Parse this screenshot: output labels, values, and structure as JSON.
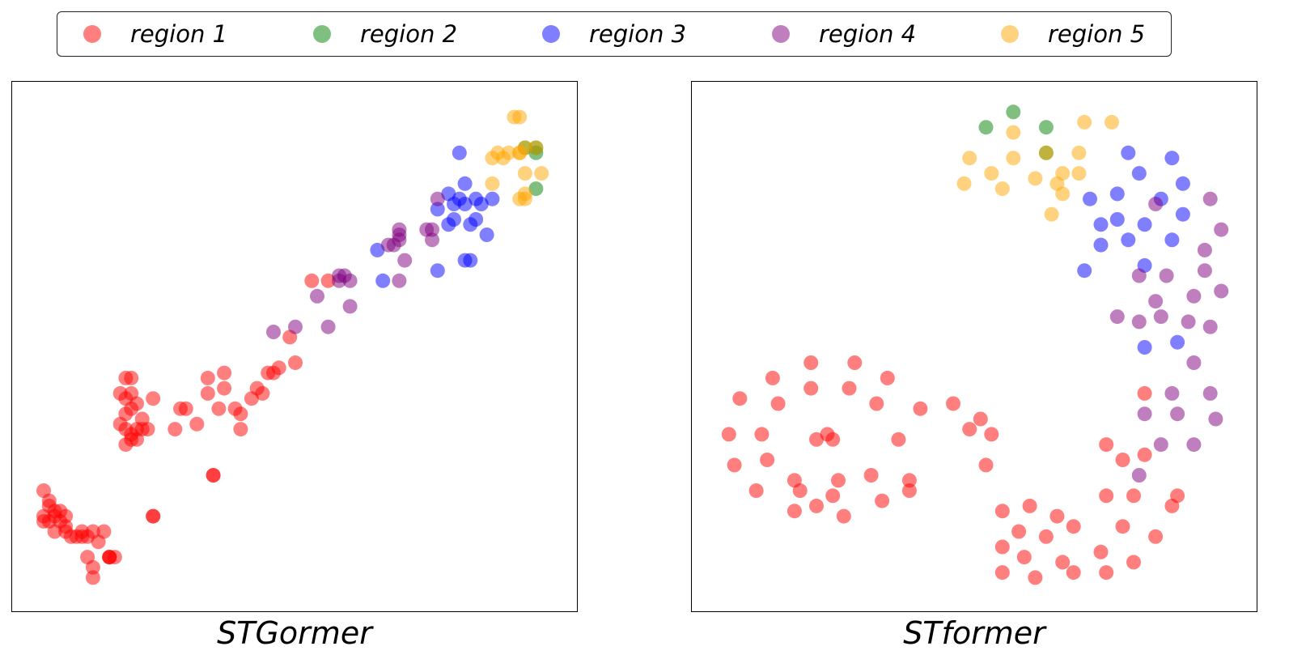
{
  "legend": {
    "items": [
      {
        "label": "region 1",
        "color": "#ff0000"
      },
      {
        "label": "region 2",
        "color": "#008000"
      },
      {
        "label": "region 3",
        "color": "#0000ff"
      },
      {
        "label": "region 4",
        "color": "#800080"
      },
      {
        "label": "region 5",
        "color": "#ffa500"
      }
    ]
  },
  "chart_data": [
    {
      "type": "scatter",
      "title": "STGormer",
      "xlim": [
        0,
        100
      ],
      "ylim": [
        0,
        100
      ],
      "series": [
        {
          "name": "region 1",
          "color": "#ff0000",
          "points": [
            [
              4,
              22
            ],
            [
              5,
              20
            ],
            [
              5,
              19
            ],
            [
              6,
              18
            ],
            [
              4,
              17
            ],
            [
              6,
              17
            ],
            [
              7,
              18
            ],
            [
              7,
              16
            ],
            [
              8,
              17
            ],
            [
              5,
              16
            ],
            [
              8,
              15
            ],
            [
              4,
              16
            ],
            [
              6,
              14
            ],
            [
              8,
              14
            ],
            [
              9,
              13
            ],
            [
              10,
              13
            ],
            [
              11,
              13
            ],
            [
              11,
              14
            ],
            [
              12,
              13
            ],
            [
              13,
              14
            ],
            [
              15,
              14
            ],
            [
              14,
              12
            ],
            [
              12,
              9
            ],
            [
              13,
              7
            ],
            [
              16,
              9
            ],
            [
              17,
              9
            ],
            [
              13,
              5
            ],
            [
              19,
              44
            ],
            [
              20,
              44
            ],
            [
              20,
              41
            ],
            [
              18,
              41
            ],
            [
              19,
              40
            ],
            [
              21,
              39
            ],
            [
              19,
              37
            ],
            [
              20,
              38
            ],
            [
              18,
              35
            ],
            [
              19,
              34
            ],
            [
              22,
              36
            ],
            [
              21,
              34
            ],
            [
              19,
              31
            ],
            [
              20,
              33
            ],
            [
              22,
              34
            ],
            [
              23,
              34
            ],
            [
              20,
              32
            ],
            [
              21,
              32
            ],
            [
              24,
              40
            ],
            [
              28,
              34
            ],
            [
              29,
              38
            ],
            [
              30,
              38
            ],
            [
              32,
              35
            ],
            [
              34,
              41
            ],
            [
              34,
              44
            ],
            [
              37,
              45
            ],
            [
              36,
              38
            ],
            [
              37,
              42
            ],
            [
              39,
              38
            ],
            [
              40,
              37
            ],
            [
              40,
              34
            ],
            [
              42,
              40
            ],
            [
              43,
              42
            ],
            [
              44,
              41
            ],
            [
              46,
              45
            ],
            [
              45,
              45
            ],
            [
              47,
              46
            ],
            [
              49,
              52
            ],
            [
              50,
              47
            ],
            [
              53,
              63
            ],
            [
              56,
              63
            ],
            [
              35,
              25
            ],
            [
              35,
              25
            ],
            [
              24,
              17
            ],
            [
              24,
              17
            ],
            [
              16,
              9
            ],
            [
              16,
              9
            ]
          ]
        },
        {
          "name": "region 2",
          "color": "#008000",
          "points": [
            [
              92,
              89
            ],
            [
              94,
              89
            ],
            [
              94,
              88
            ],
            [
              94,
              81
            ]
          ]
        },
        {
          "name": "region 3",
          "color": "#0000ff",
          "points": [
            [
              80,
              88
            ],
            [
              81,
              82
            ],
            [
              78,
              80
            ],
            [
              81,
              78
            ],
            [
              79,
              78
            ],
            [
              80,
              79
            ],
            [
              83,
              79
            ],
            [
              76,
              77
            ],
            [
              79,
              75
            ],
            [
              84,
              78
            ],
            [
              86,
              79
            ],
            [
              83,
              75
            ],
            [
              82,
              74
            ],
            [
              85,
              72
            ],
            [
              78,
              74
            ],
            [
              65,
              69
            ],
            [
              76,
              65
            ],
            [
              66,
              63
            ],
            [
              81,
              67
            ],
            [
              82,
              67
            ]
          ]
        },
        {
          "name": "region 4",
          "color": "#800080",
          "points": [
            [
              76,
              79
            ],
            [
              69,
              73
            ],
            [
              69,
              71
            ],
            [
              74,
              73
            ],
            [
              75,
              73
            ],
            [
              75,
              71
            ],
            [
              67,
              70
            ],
            [
              68,
              70
            ],
            [
              69,
              72
            ],
            [
              70,
              67
            ],
            [
              60,
              63
            ],
            [
              59,
              64
            ],
            [
              58,
              64
            ],
            [
              58,
              63
            ],
            [
              54,
              60
            ],
            [
              60,
              58
            ],
            [
              69,
              63
            ],
            [
              46,
              53
            ],
            [
              56,
              54
            ],
            [
              50,
              54
            ]
          ]
        },
        {
          "name": "region 5",
          "color": "#ffa500",
          "points": [
            [
              90,
              95
            ],
            [
              91,
              95
            ],
            [
              88,
              87
            ],
            [
              87,
              88
            ],
            [
              86,
              87
            ],
            [
              89,
              88
            ],
            [
              91,
              88
            ],
            [
              92,
              89
            ],
            [
              92,
              84
            ],
            [
              95,
              84
            ],
            [
              86,
              82
            ],
            [
              92,
              80
            ],
            [
              91,
              79
            ],
            [
              92,
              79
            ],
            [
              91,
              88
            ],
            [
              94,
              89
            ]
          ]
        }
      ]
    },
    {
      "type": "scatter",
      "title": "STformer",
      "xlim": [
        0,
        100
      ],
      "ylim": [
        0,
        100
      ],
      "series": [
        {
          "name": "region 1",
          "color": "#ff0000",
          "points": [
            [
              20,
              47
            ],
            [
              28,
              47
            ],
            [
              13,
              44
            ],
            [
              20,
              42
            ],
            [
              27,
              42
            ],
            [
              34,
              44
            ],
            [
              7,
              40
            ],
            [
              14,
              39
            ],
            [
              40,
              38
            ],
            [
              32,
              39
            ],
            [
              46,
              39
            ],
            [
              5,
              33
            ],
            [
              11,
              33
            ],
            [
              23,
              33
            ],
            [
              24,
              32
            ],
            [
              36,
              32
            ],
            [
              21,
              32
            ],
            [
              6,
              27
            ],
            [
              12,
              28
            ],
            [
              17,
              24
            ],
            [
              25,
              24
            ],
            [
              31,
              25
            ],
            [
              38,
              24
            ],
            [
              10,
              22
            ],
            [
              38,
              22
            ],
            [
              18,
              22
            ],
            [
              24,
              21
            ],
            [
              21,
              19
            ],
            [
              33,
              20
            ],
            [
              17,
              18
            ],
            [
              26,
              17
            ],
            [
              51,
              36
            ],
            [
              49,
              34
            ],
            [
              53,
              33
            ],
            [
              52,
              27
            ],
            [
              74,
              31
            ],
            [
              77,
              28
            ],
            [
              81,
              29
            ],
            [
              81,
              41
            ],
            [
              74,
              21
            ],
            [
              79,
              21
            ],
            [
              87,
              21
            ],
            [
              55,
              18
            ],
            [
              60,
              19
            ],
            [
              65,
              17
            ],
            [
              58,
              14
            ],
            [
              63,
              13
            ],
            [
              68,
              15
            ],
            [
              77,
              15
            ],
            [
              86,
              19
            ],
            [
              83,
              13
            ],
            [
              55,
              11
            ],
            [
              59,
              9
            ],
            [
              66,
              8
            ],
            [
              73,
              10
            ],
            [
              79,
              8
            ],
            [
              55,
              6
            ],
            [
              61,
              5
            ],
            [
              68,
              6
            ],
            [
              74,
              6
            ]
          ]
        },
        {
          "name": "region 2",
          "color": "#008000",
          "points": [
            [
              57,
              96
            ],
            [
              52,
              93
            ],
            [
              63,
              93
            ],
            [
              63,
              88
            ]
          ]
        },
        {
          "name": "region 3",
          "color": "#0000ff",
          "points": [
            [
              78,
              88
            ],
            [
              86,
              87
            ],
            [
              80,
              84
            ],
            [
              88,
              82
            ],
            [
              71,
              79
            ],
            [
              76,
              80
            ],
            [
              84,
              79
            ],
            [
              73,
              74
            ],
            [
              76,
              75
            ],
            [
              81,
              74
            ],
            [
              88,
              76
            ],
            [
              73,
              70
            ],
            [
              78,
              71
            ],
            [
              86,
              71
            ],
            [
              70,
              65
            ],
            [
              81,
              66
            ],
            [
              81,
              50
            ],
            [
              87,
              51
            ]
          ]
        },
        {
          "name": "region 4",
          "color": "#800080",
          "points": [
            [
              83,
              78
            ],
            [
              93,
              79
            ],
            [
              95,
              73
            ],
            [
              92,
              69
            ],
            [
              92,
              65
            ],
            [
              85,
              64
            ],
            [
              95,
              61
            ],
            [
              80,
              64
            ],
            [
              83,
              59
            ],
            [
              90,
              60
            ],
            [
              84,
              56
            ],
            [
              89,
              55
            ],
            [
              80,
              55
            ],
            [
              93,
              54
            ],
            [
              76,
              56
            ],
            [
              90,
              47
            ],
            [
              86,
              41
            ],
            [
              93,
              41
            ],
            [
              81,
              37
            ],
            [
              87,
              37
            ],
            [
              94,
              36
            ],
            [
              84,
              31
            ],
            [
              90,
              31
            ],
            [
              80,
              25
            ]
          ]
        },
        {
          "name": "region 5",
          "color": "#ffa500",
          "points": [
            [
              70,
              94
            ],
            [
              75,
              94
            ],
            [
              57,
              92
            ],
            [
              69,
              88
            ],
            [
              49,
              87
            ],
            [
              57,
              87
            ],
            [
              63,
              88
            ],
            [
              69,
              84
            ],
            [
              66,
              84
            ],
            [
              48,
              82
            ],
            [
              53,
              84
            ],
            [
              61,
              83
            ],
            [
              65,
              82
            ],
            [
              55,
              81
            ],
            [
              66,
              80
            ],
            [
              64,
              76
            ]
          ]
        }
      ]
    }
  ]
}
